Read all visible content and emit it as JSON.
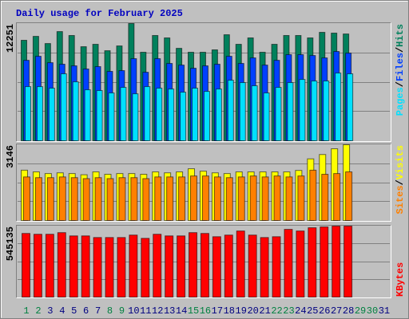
{
  "chart_data": [
    {
      "type": "bar",
      "title": "Daily usage for February 2025",
      "categories": [
        "1",
        "2",
        "3",
        "4",
        "5",
        "6",
        "7",
        "8",
        "9",
        "10",
        "11",
        "12",
        "13",
        "14",
        "15",
        "16",
        "17",
        "18",
        "19",
        "20",
        "21",
        "22",
        "23",
        "24",
        "25",
        "26",
        "27",
        "28",
        "29",
        "30",
        "31"
      ],
      "category_colors": [
        "#008040",
        "#008040",
        "#000080",
        "#000080",
        "#000080",
        "#000080",
        "#000080",
        "#008040",
        "#008040",
        "#000080",
        "#000080",
        "#000080",
        "#000080",
        "#000080",
        "#008040",
        "#008040",
        "#000080",
        "#000080",
        "#000080",
        "#000080",
        "#000080",
        "#008040",
        "#008040",
        "#000080",
        "#000080",
        "#000080",
        "#000080",
        "#000080",
        "#008040",
        "#008040",
        "#000080"
      ],
      "ylim": [
        0,
        12251
      ],
      "yticks": [
        12251
      ],
      "legend": "top",
      "legend_separator": "/",
      "series": [
        {
          "name": "Hits",
          "color": "#00805c",
          "values": [
            10500,
            10910,
            10160,
            11410,
            11000,
            9830,
            10080,
            9410,
            9910,
            12251,
            9250,
            11000,
            10750,
            9660,
            9250,
            9250,
            9500,
            11080,
            10080,
            10750,
            9250,
            10080,
            11000,
            11000,
            10750,
            11330,
            11250,
            11160,
            null,
            null,
            null
          ]
        },
        {
          "name": "Files",
          "color": "#0040ff",
          "values": [
            8410,
            8830,
            8160,
            8000,
            7830,
            7500,
            7750,
            7250,
            7330,
            8580,
            7160,
            8580,
            8080,
            7910,
            7580,
            7830,
            8000,
            8830,
            8080,
            8660,
            7910,
            8410,
            9000,
            9000,
            8910,
            8660,
            9330,
            9160,
            null,
            null,
            null
          ]
        },
        {
          "name": "Pages",
          "color": "#00e0ff",
          "values": [
            5660,
            5660,
            5500,
            7000,
            6160,
            5330,
            5250,
            5000,
            5580,
            4910,
            5660,
            5500,
            5410,
            5080,
            5500,
            5160,
            5410,
            6330,
            6080,
            5750,
            5000,
            5580,
            6080,
            6410,
            6250,
            6250,
            7080,
            7000,
            null,
            null,
            null
          ]
        }
      ]
    },
    {
      "type": "bar",
      "ylim": [
        0,
        3146
      ],
      "yticks": [
        3146
      ],
      "legend": "top",
      "series": [
        {
          "name": "Visits",
          "color": "#ffff00",
          "values": [
            2090,
            2020,
            1950,
            1980,
            1950,
            1900,
            2020,
            1920,
            1950,
            1950,
            1920,
            2020,
            1980,
            2020,
            2150,
            2050,
            1980,
            1950,
            2020,
            2020,
            2020,
            2020,
            2020,
            2080,
            2560,
            2740,
            2980,
            3146,
            null,
            null,
            null
          ]
        },
        {
          "name": "Sites",
          "color": "#ff8000",
          "values": [
            1810,
            1780,
            1780,
            1810,
            1780,
            1740,
            1780,
            1740,
            1780,
            1780,
            1740,
            1810,
            1810,
            1810,
            1850,
            1850,
            1810,
            1780,
            1810,
            1850,
            1810,
            1850,
            1810,
            1850,
            2090,
            1920,
            1950,
            2020,
            null,
            null,
            null
          ]
        }
      ]
    },
    {
      "type": "bar",
      "ylim": [
        0,
        545135
      ],
      "yticks": [
        545135
      ],
      "legend": "bottom",
      "series": [
        {
          "name": "KBytes",
          "color": "#ff0000",
          "values": [
            488750,
            482480,
            482480,
            495010,
            469950,
            469950,
            457420,
            457420,
            457420,
            476220,
            451150,
            482480,
            469950,
            469950,
            495010,
            488750,
            463680,
            476220,
            507550,
            476220,
            457420,
            463680,
            520080,
            507550,
            532610,
            538880,
            545135,
            545135,
            null,
            null,
            null
          ]
        }
      ]
    }
  ]
}
